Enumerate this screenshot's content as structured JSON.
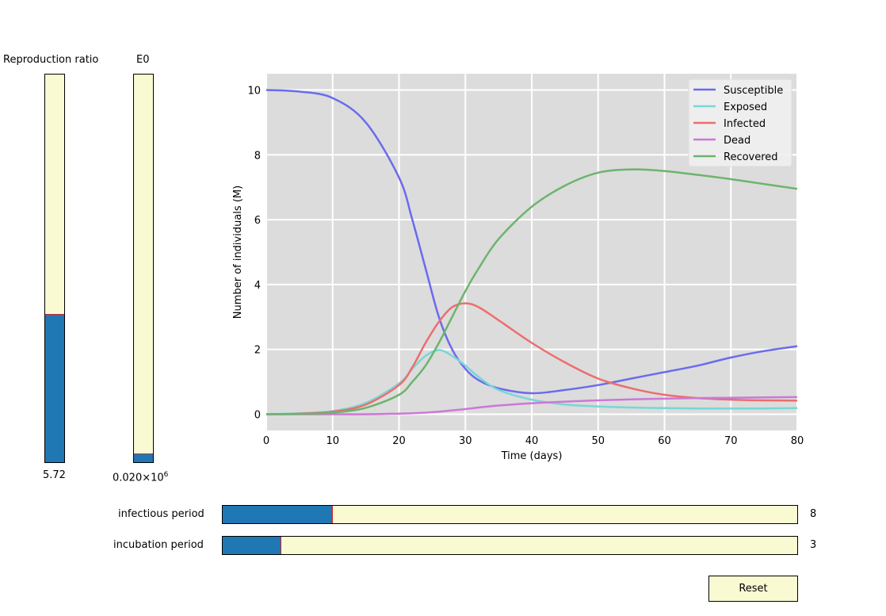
{
  "sliders": {
    "r0": {
      "label": "Reproduction ratio",
      "value_text": "5.72",
      "fill_fraction": 0.38
    },
    "e0": {
      "label": "E0",
      "value_text": "0.020×10",
      "value_sup": "6",
      "fill_fraction": 0.02
    },
    "infectious": {
      "label": "infectious period",
      "value_text": "8",
      "fill_fraction": 0.19
    },
    "incubation": {
      "label": "incubation period",
      "value_text": "3",
      "fill_fraction": 0.1
    }
  },
  "reset_label": "Reset",
  "chart_data": {
    "type": "line",
    "title": "",
    "xlabel": "Time (days)",
    "ylabel": "Number of individuals (M)",
    "xlim": [
      0,
      80
    ],
    "ylim": [
      -0.5,
      10.5
    ],
    "xticks": [
      "0",
      "10",
      "20",
      "30",
      "40",
      "50",
      "60",
      "70",
      "80"
    ],
    "yticks": [
      "0",
      "2",
      "4",
      "6",
      "8",
      "10"
    ],
    "grid": true,
    "legend_position": "top-right",
    "x": [
      0,
      5,
      10,
      15,
      20,
      22,
      24,
      26,
      28,
      30,
      32,
      35,
      40,
      45,
      50,
      55,
      60,
      65,
      70,
      75,
      80
    ],
    "series": [
      {
        "name": "Susceptible",
        "color": "#6b6bee",
        "values": [
          10.0,
          9.95,
          9.75,
          9.0,
          7.3,
          6.0,
          4.5,
          3.0,
          2.0,
          1.4,
          1.05,
          0.8,
          0.65,
          0.75,
          0.9,
          1.1,
          1.3,
          1.5,
          1.75,
          1.95,
          2.1
        ]
      },
      {
        "name": "Exposed",
        "color": "#78d6d6",
        "values": [
          0.0,
          0.03,
          0.1,
          0.35,
          0.95,
          1.4,
          1.8,
          1.98,
          1.8,
          1.5,
          1.15,
          0.75,
          0.45,
          0.3,
          0.24,
          0.21,
          0.19,
          0.18,
          0.18,
          0.18,
          0.19
        ]
      },
      {
        "name": "Infected",
        "color": "#ec6e6e",
        "values": [
          0.0,
          0.02,
          0.08,
          0.3,
          0.9,
          1.45,
          2.2,
          2.85,
          3.3,
          3.42,
          3.3,
          2.9,
          2.2,
          1.6,
          1.1,
          0.8,
          0.6,
          0.5,
          0.45,
          0.43,
          0.42
        ]
      },
      {
        "name": "Dead",
        "color": "#cc78d6",
        "values": [
          0.0,
          0.0,
          0.0,
          0.0,
          0.02,
          0.03,
          0.05,
          0.08,
          0.12,
          0.16,
          0.21,
          0.27,
          0.34,
          0.39,
          0.43,
          0.46,
          0.48,
          0.5,
          0.51,
          0.52,
          0.53
        ]
      },
      {
        "name": "Recovered",
        "color": "#6db46d",
        "values": [
          0.0,
          0.01,
          0.05,
          0.2,
          0.6,
          1.0,
          1.5,
          2.2,
          3.0,
          3.8,
          4.5,
          5.4,
          6.4,
          7.05,
          7.45,
          7.55,
          7.5,
          7.38,
          7.25,
          7.1,
          6.95
        ]
      }
    ]
  }
}
